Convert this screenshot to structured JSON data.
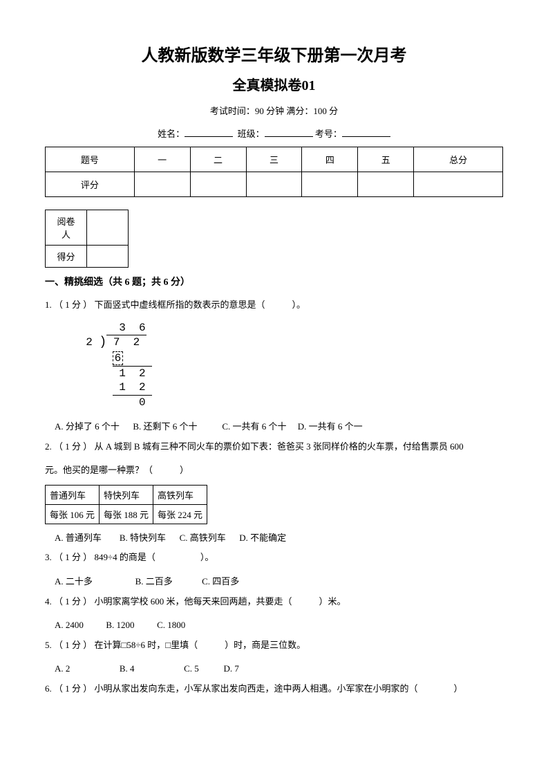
{
  "title": {
    "main": "人教新版数学三年级下册第一次月考",
    "sub": "全真模拟卷01"
  },
  "exam_info": "考试时间：90 分钟 满分：100 分",
  "name_labels": {
    "name": "姓名：",
    "class": "班级：",
    "number": "考号："
  },
  "score_table": {
    "headers": [
      "题号",
      "一",
      "二",
      "三",
      "四",
      "五",
      "总分"
    ],
    "row_label": "评分"
  },
  "grading_table": {
    "row1": "阅卷人",
    "row2": "得分"
  },
  "section1": {
    "header": "一、精挑细选（共 6 题；共 6 分）",
    "questions": [
      {
        "num": "1.",
        "points": "（ 1 分 ）",
        "text": "下面竖式中虚线框所指的数表示的意思是（　　　）。",
        "options": [
          "A.    分掉了 6 个十",
          "B.    还剩下 6 个十",
          "C.    一共有 6 个十",
          "D.    一共有 6 个一"
        ]
      },
      {
        "num": "2.",
        "points": "（ 1 分 ）",
        "text": "从 A 城到 B 城有三种不同火车的票价如下表：爸爸买 3 张同样价格的火车票，付给售票员 600",
        "text2": "元。他买的是哪一种票？（　　　）",
        "options": [
          "A.    普通列车",
          "B.    特快列车",
          "C.    高铁列车",
          "D.    不能确定"
        ]
      },
      {
        "num": "3.",
        "points": "（ 1 分 ）",
        "text": "849÷4 的商是（　　　　　）。",
        "options": [
          "A.    二十多",
          "B.    二百多",
          "C.    四百多"
        ]
      },
      {
        "num": "4.",
        "points": "（ 1 分 ）",
        "text": "小明家离学校 600 米，他每天来回两趟，共要走（　　　）米。",
        "options": [
          "A.    2400",
          "B.    1200",
          "C.    1800"
        ]
      },
      {
        "num": "5.",
        "points": "（ 1 分 ）",
        "text": "在计算□58÷6 时，□里填（　　　）时，商是三位数。",
        "options": [
          "A.    2",
          "B.    4",
          "C.    5",
          "D.    7"
        ]
      },
      {
        "num": "6.",
        "points": "（ 1 分 ）",
        "text": "小明从家出发向东走，小军从家出发向西走，途中两人相遇。小军家在小明家的（　　　　）"
      }
    ]
  },
  "train_table": {
    "headers": [
      "普通列车",
      "特快列车",
      "高铁列车"
    ],
    "prices": [
      "每张 106 元",
      "每张 188 元",
      "每张 224 元"
    ]
  },
  "division": {
    "quotient": "3  6",
    "divisor": "2",
    "dividend": "7  2",
    "step1": "6",
    "step2a": "1  2",
    "step2b": "1  2",
    "remainder": "0"
  }
}
